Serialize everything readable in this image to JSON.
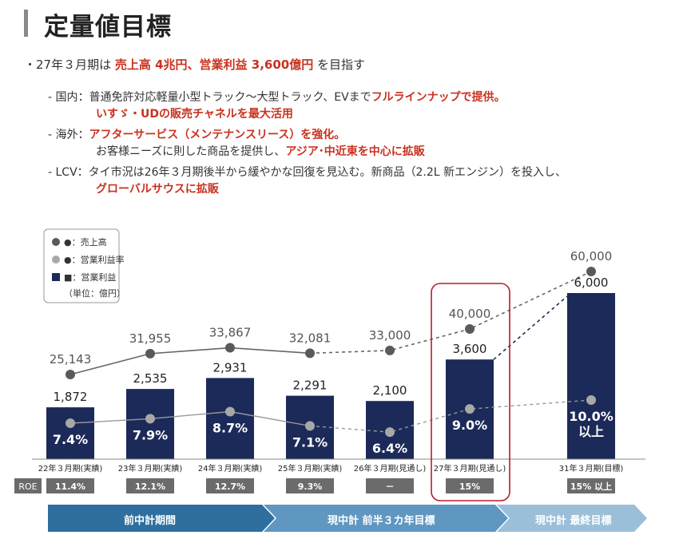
{
  "page": {
    "title": "定量値目標"
  },
  "summary": {
    "bullet": "・",
    "prefix": "27年３月期は ",
    "emphasis": "売上高 4兆円、営業利益 3,600億円",
    "suffix": " を目指す"
  },
  "domestic": {
    "label": "- 国内：",
    "text1": "普通免許対応軽量小型トラック～大型トラック、EVまで",
    "em1": "フルラインナップで提供。",
    "em2": "いすゞ・UDの販売チャネルを最大活用"
  },
  "overseas": {
    "label": "- 海外：",
    "em1": "アフターサービス（メンテナンスリース）を強化。",
    "text2": "お客様ニーズに則した商品を提供し、",
    "em2": "アジア･中近東を中心に拡販"
  },
  "lcv": {
    "label": "- LCV：",
    "text1": "タイ市況は26年３月期後半から緩やかな回復を見込む。新商品（2.2L 新エンジン）を投入し、",
    "em1": "グローバルサウスに拡販"
  },
  "legend": {
    "items": [
      "●：売上高",
      "●：営業利益率",
      "■：営業利益"
    ],
    "unit": "（単位：億円）"
  },
  "roe_label": "ROE",
  "phases": [
    "前中計期間",
    "現中計 前半３カ年目標",
    "現中計 最終目標"
  ],
  "colors": {
    "bar": "#1b2a58",
    "revenue_dot": "#5a5a5a",
    "margin_dot": "#a8a8a8",
    "highlight": "#b81c2c",
    "arrow1": "#2f6f9f",
    "arrow2": "#5f97c1",
    "arrow3": "#9bbfd9"
  },
  "chart_data": {
    "type": "bar",
    "categories": [
      "22年３月期(実績)",
      "23年３月期(実績)",
      "24年３月期(実績)",
      "25年３月期(実績)",
      "26年３月期(見通し)",
      "27年３月期(見通し)",
      "31年３月期(目標)"
    ],
    "series": [
      {
        "name": "営業利益",
        "kind": "bar",
        "values": [
          1872,
          2535,
          2931,
          2291,
          2100,
          3600,
          6000
        ],
        "labels": [
          "1,872",
          "2,535",
          "2,931",
          "2,291",
          "2,100",
          "3,600",
          "6,000"
        ]
      },
      {
        "name": "売上高",
        "kind": "line",
        "values": [
          25143,
          31955,
          33867,
          32081,
          33000,
          40000,
          60000
        ],
        "labels": [
          "25,143",
          "31,955",
          "33,867",
          "32,081",
          "33,000",
          "40,000",
          "60,000"
        ]
      },
      {
        "name": "営業利益率",
        "kind": "line",
        "values": [
          7.4,
          7.9,
          8.7,
          7.1,
          6.4,
          9.0,
          10.0
        ],
        "labels": [
          "7.4%",
          "7.9%",
          "8.7%",
          "7.1%",
          "6.4%",
          "9.0%",
          "10.0%"
        ],
        "extra_label_last": "以上"
      }
    ],
    "roe": [
      "11.4%",
      "12.1%",
      "12.7%",
      "9.3%",
      "－",
      "15%",
      "15% 以上"
    ],
    "highlight_category": 5
  }
}
